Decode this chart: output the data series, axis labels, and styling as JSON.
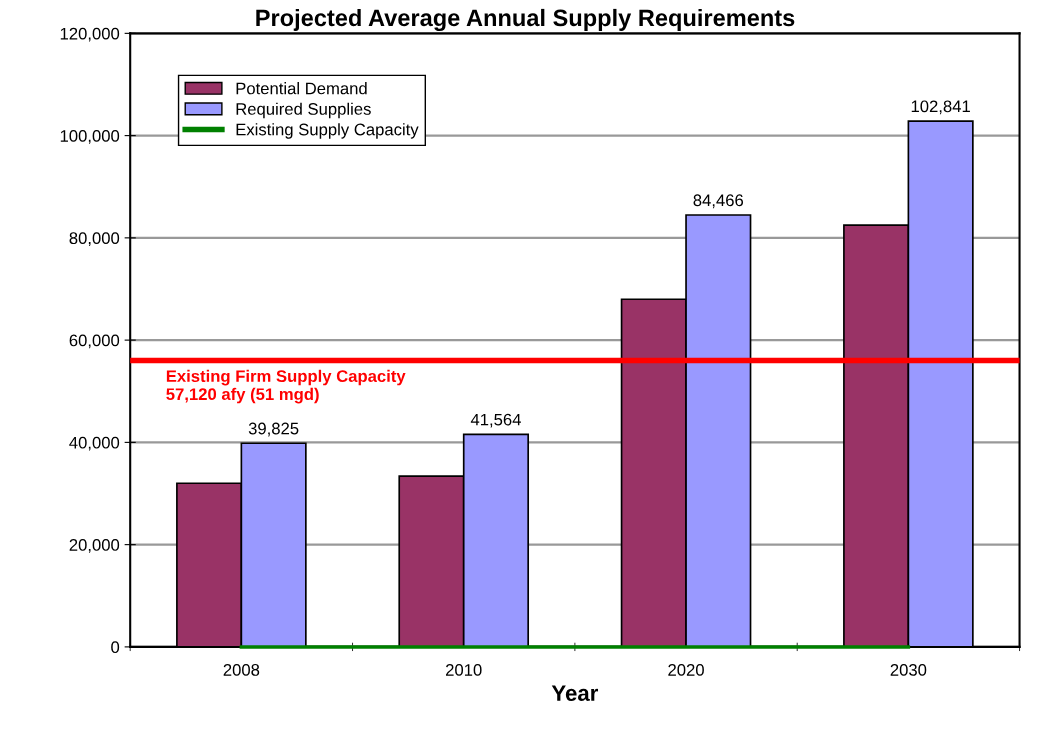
{
  "chart_data": {
    "type": "bar",
    "title": "Projected Average Annual Supply Requirements",
    "xlabel": "Year",
    "categories": [
      "2008",
      "2010",
      "2020",
      "2030"
    ],
    "series": [
      {
        "name": "Potential Demand",
        "color": "#993366",
        "values": [
          32000,
          33400,
          68000,
          82500
        ]
      },
      {
        "name": "Required Supplies",
        "color": "#9999ff",
        "values": [
          39825,
          41564,
          84466,
          102841
        ],
        "value_labels": [
          "39,825",
          "41,564",
          "84,466",
          "102,841"
        ]
      },
      {
        "name": "Existing Supply Capacity",
        "type": "line",
        "color": "#008000",
        "values": [
          0,
          0,
          0,
          0
        ]
      }
    ],
    "ref_lines": [
      {
        "axis": "y",
        "value": 56000,
        "label": "Existing Firm Supply Capacity\n57,120 afy (51 mgd)",
        "color": "#ff0000"
      }
    ],
    "ylim": [
      0,
      120000
    ],
    "yticks": [
      {
        "value": 0,
        "label": "0"
      },
      {
        "value": 20000,
        "label": "20,000"
      },
      {
        "value": 40000,
        "label": "40,000"
      },
      {
        "value": 60000,
        "label": "60,000"
      },
      {
        "value": 80000,
        "label": "80,000"
      },
      {
        "value": 100000,
        "label": "100,000"
      },
      {
        "value": 120000,
        "label": "120,000"
      }
    ],
    "grid": "y",
    "legend": "top left"
  }
}
